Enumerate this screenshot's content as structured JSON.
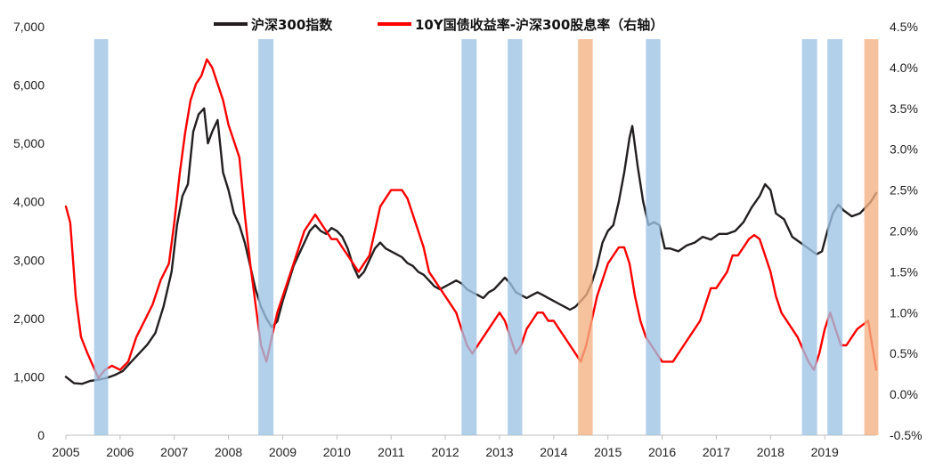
{
  "chart_data": {
    "type": "line",
    "title": "",
    "x_ticks": [
      "2005",
      "2006",
      "2007",
      "2008",
      "2009",
      "2010",
      "2011",
      "2012",
      "2013",
      "2014",
      "2015",
      "2016",
      "2017",
      "2018",
      "2019"
    ],
    "xlim": [
      2005.0,
      2019.95
    ],
    "left_axis": {
      "ticks": [
        "0",
        "1,000",
        "2,000",
        "3,000",
        "4,000",
        "5,000",
        "6,000",
        "7,000"
      ],
      "ylim": [
        0,
        7000
      ]
    },
    "right_axis": {
      "ticks": [
        "-0.5%",
        "0.0%",
        "0.5%",
        "1.0%",
        "1.5%",
        "2.0%",
        "2.5%",
        "3.0%",
        "3.5%",
        "4.0%",
        "4.5%"
      ],
      "ylim": [
        -0.5,
        4.5
      ]
    },
    "legend": {
      "position": "top",
      "entries": [
        {
          "name": "沪深300指数",
          "color": "#231f20"
        },
        {
          "name": "10Y国债收益率-沪深300股息率（右轴）",
          "color": "#ff0000"
        }
      ]
    },
    "shaded_periods": [
      {
        "start": 2005.52,
        "end": 2005.78,
        "color": "#9dc3e6"
      },
      {
        "start": 2008.55,
        "end": 2008.83,
        "color": "#9dc3e6"
      },
      {
        "start": 2012.3,
        "end": 2012.58,
        "color": "#9dc3e6"
      },
      {
        "start": 2013.15,
        "end": 2013.42,
        "color": "#9dc3e6"
      },
      {
        "start": 2014.45,
        "end": 2014.72,
        "color": "#f4b183"
      },
      {
        "start": 2015.7,
        "end": 2015.97,
        "color": "#9dc3e6"
      },
      {
        "start": 2018.58,
        "end": 2018.86,
        "color": "#9dc3e6"
      },
      {
        "start": 2019.05,
        "end": 2019.33,
        "color": "#9dc3e6"
      },
      {
        "start": 2019.73,
        "end": 2019.99,
        "color": "#f4b183"
      }
    ],
    "series": [
      {
        "name": "沪深300指数",
        "axis": "left",
        "color": "#231f20",
        "x": [
          2005.0,
          2005.15,
          2005.3,
          2005.45,
          2005.6,
          2005.75,
          2005.9,
          2006.05,
          2006.2,
          2006.35,
          2006.5,
          2006.65,
          2006.8,
          2006.95,
          2007.05,
          2007.15,
          2007.25,
          2007.35,
          2007.45,
          2007.55,
          2007.62,
          2007.7,
          2007.8,
          2007.9,
          2008.0,
          2008.1,
          2008.2,
          2008.3,
          2008.4,
          2008.5,
          2008.6,
          2008.7,
          2008.8,
          2008.9,
          2009.0,
          2009.1,
          2009.2,
          2009.3,
          2009.4,
          2009.5,
          2009.6,
          2009.7,
          2009.8,
          2009.9,
          2010.0,
          2010.1,
          2010.2,
          2010.3,
          2010.4,
          2010.5,
          2010.6,
          2010.7,
          2010.8,
          2010.9,
          2011.0,
          2011.1,
          2011.2,
          2011.3,
          2011.4,
          2011.5,
          2011.6,
          2011.7,
          2011.8,
          2011.9,
          2012.0,
          2012.1,
          2012.2,
          2012.3,
          2012.4,
          2012.5,
          2012.6,
          2012.7,
          2012.8,
          2012.9,
          2013.0,
          2013.1,
          2013.2,
          2013.3,
          2013.4,
          2013.5,
          2013.6,
          2013.7,
          2013.8,
          2013.9,
          2014.0,
          2014.1,
          2014.2,
          2014.3,
          2014.4,
          2014.5,
          2014.6,
          2014.7,
          2014.8,
          2014.9,
          2015.0,
          2015.1,
          2015.2,
          2015.3,
          2015.4,
          2015.45,
          2015.55,
          2015.65,
          2015.75,
          2015.85,
          2015.95,
          2016.05,
          2016.15,
          2016.3,
          2016.45,
          2016.6,
          2016.75,
          2016.9,
          2017.05,
          2017.2,
          2017.35,
          2017.5,
          2017.65,
          2017.8,
          2017.9,
          2018.0,
          2018.1,
          2018.25,
          2018.4,
          2018.55,
          2018.7,
          2018.85,
          2018.95,
          2019.05,
          2019.15,
          2019.25,
          2019.35,
          2019.5,
          2019.65,
          2019.75,
          2019.85,
          2019.95
        ],
        "values": [
          1000,
          890,
          880,
          930,
          950,
          980,
          1030,
          1100,
          1250,
          1400,
          1550,
          1750,
          2200,
          2800,
          3600,
          4100,
          4300,
          5200,
          5500,
          5600,
          5000,
          5200,
          5400,
          4500,
          4200,
          3800,
          3600,
          3300,
          2900,
          2500,
          2200,
          2000,
          1850,
          1950,
          2300,
          2600,
          2900,
          3100,
          3300,
          3500,
          3600,
          3500,
          3450,
          3550,
          3500,
          3400,
          3200,
          2900,
          2700,
          2800,
          3000,
          3200,
          3300,
          3200,
          3150,
          3100,
          3050,
          2950,
          2900,
          2800,
          2750,
          2650,
          2550,
          2500,
          2550,
          2600,
          2650,
          2600,
          2500,
          2450,
          2400,
          2350,
          2450,
          2500,
          2600,
          2700,
          2600,
          2450,
          2400,
          2350,
          2400,
          2450,
          2400,
          2350,
          2300,
          2250,
          2200,
          2150,
          2200,
          2300,
          2400,
          2600,
          2900,
          3300,
          3500,
          3600,
          4000,
          4500,
          5100,
          5300,
          4600,
          4000,
          3600,
          3650,
          3600,
          3200,
          3200,
          3150,
          3250,
          3300,
          3400,
          3350,
          3450,
          3450,
          3500,
          3650,
          3900,
          4100,
          4300,
          4200,
          3800,
          3700,
          3400,
          3300,
          3200,
          3100,
          3150,
          3500,
          3800,
          3950,
          3850,
          3750,
          3800,
          3900,
          4000,
          4150
        ]
      },
      {
        "name": "10Y国债收益率-沪深300股息率（右轴）",
        "axis": "right",
        "color": "#ff0000",
        "x": [
          2005.0,
          2005.08,
          2005.18,
          2005.28,
          2005.4,
          2005.5,
          2005.6,
          2005.72,
          2005.85,
          2006.0,
          2006.15,
          2006.3,
          2006.45,
          2006.6,
          2006.75,
          2006.9,
          2007.0,
          2007.1,
          2007.2,
          2007.3,
          2007.4,
          2007.5,
          2007.6,
          2007.7,
          2007.8,
          2007.9,
          2008.0,
          2008.1,
          2008.2,
          2008.3,
          2008.4,
          2008.5,
          2008.6,
          2008.7,
          2008.8,
          2008.9,
          2009.0,
          2009.1,
          2009.2,
          2009.3,
          2009.4,
          2009.5,
          2009.6,
          2009.7,
          2009.8,
          2009.9,
          2010.0,
          2010.1,
          2010.2,
          2010.3,
          2010.4,
          2010.5,
          2010.6,
          2010.7,
          2010.8,
          2010.9,
          2011.0,
          2011.1,
          2011.2,
          2011.3,
          2011.4,
          2011.5,
          2011.6,
          2011.7,
          2011.8,
          2011.9,
          2012.0,
          2012.1,
          2012.2,
          2012.3,
          2012.4,
          2012.5,
          2012.6,
          2012.7,
          2012.8,
          2012.9,
          2013.0,
          2013.1,
          2013.2,
          2013.3,
          2013.4,
          2013.5,
          2013.6,
          2013.7,
          2013.8,
          2013.9,
          2014.0,
          2014.1,
          2014.2,
          2014.3,
          2014.4,
          2014.5,
          2014.6,
          2014.7,
          2014.8,
          2014.9,
          2015.0,
          2015.1,
          2015.2,
          2015.3,
          2015.4,
          2015.5,
          2015.6,
          2015.7,
          2015.8,
          2015.9,
          2016.0,
          2016.1,
          2016.2,
          2016.3,
          2016.4,
          2016.5,
          2016.6,
          2016.7,
          2016.8,
          2016.9,
          2017.0,
          2017.1,
          2017.2,
          2017.3,
          2017.4,
          2017.5,
          2017.6,
          2017.7,
          2017.8,
          2017.9,
          2018.0,
          2018.1,
          2018.2,
          2018.3,
          2018.4,
          2018.5,
          2018.6,
          2018.7,
          2018.8,
          2018.9,
          2019.0,
          2019.1,
          2019.2,
          2019.3,
          2019.4,
          2019.5,
          2019.6,
          2019.7,
          2019.8,
          2019.9,
          2019.95
        ],
        "values": [
          2.3,
          2.1,
          1.2,
          0.7,
          0.5,
          0.35,
          0.2,
          0.3,
          0.35,
          0.3,
          0.4,
          0.7,
          0.9,
          1.1,
          1.4,
          1.6,
          2.1,
          2.7,
          3.2,
          3.6,
          3.8,
          3.9,
          4.1,
          4.0,
          3.8,
          3.6,
          3.3,
          3.1,
          2.9,
          2.2,
          1.6,
          1.1,
          0.6,
          0.4,
          0.7,
          1.0,
          1.2,
          1.4,
          1.6,
          1.8,
          2.0,
          2.1,
          2.2,
          2.1,
          2.0,
          1.9,
          1.9,
          1.8,
          1.7,
          1.6,
          1.5,
          1.6,
          1.7,
          2.0,
          2.3,
          2.4,
          2.5,
          2.5,
          2.5,
          2.4,
          2.2,
          2.0,
          1.8,
          1.5,
          1.4,
          1.3,
          1.2,
          1.1,
          1.0,
          0.8,
          0.6,
          0.5,
          0.6,
          0.7,
          0.8,
          0.9,
          1.0,
          0.9,
          0.7,
          0.5,
          0.6,
          0.8,
          0.9,
          1.0,
          1.0,
          0.9,
          0.9,
          0.8,
          0.7,
          0.6,
          0.5,
          0.4,
          0.6,
          0.9,
          1.2,
          1.4,
          1.6,
          1.7,
          1.8,
          1.8,
          1.6,
          1.2,
          0.9,
          0.7,
          0.6,
          0.5,
          0.4,
          0.4,
          0.4,
          0.5,
          0.6,
          0.7,
          0.8,
          0.9,
          1.1,
          1.3,
          1.3,
          1.4,
          1.5,
          1.7,
          1.7,
          1.8,
          1.9,
          1.95,
          1.9,
          1.7,
          1.5,
          1.2,
          1.0,
          0.9,
          0.8,
          0.7,
          0.55,
          0.4,
          0.3,
          0.5,
          0.8,
          1.0,
          0.8,
          0.6,
          0.6,
          0.7,
          0.8,
          0.85,
          0.9,
          0.5,
          0.3
        ]
      }
    ]
  }
}
